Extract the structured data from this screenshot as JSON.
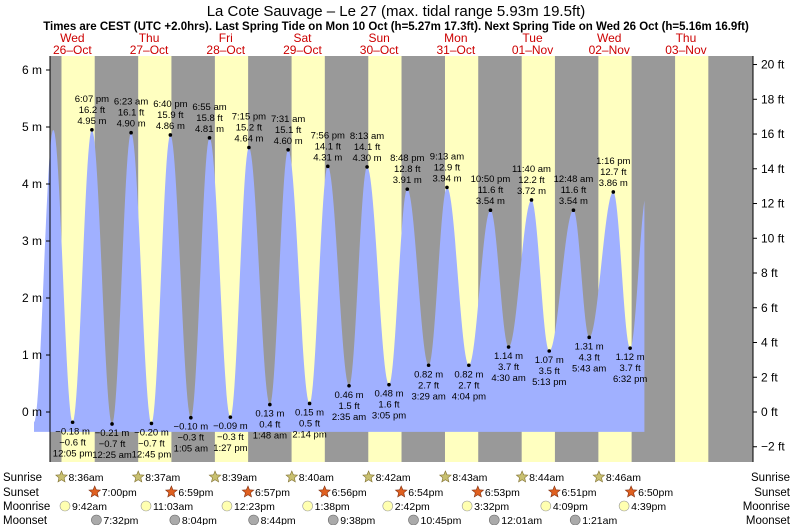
{
  "chart_data": {
    "type": "area",
    "title": "La Cote Sauvage – Le 27 (max. tidal range 5.93m 19.5ft)",
    "subtitle": "Times are CEST (UTC +2.0hrs). Last Spring Tide on Mon 10 Oct (h=5.27m 17.3ft). Next Spring Tide on Wed 26 Oct (h=5.16m 16.9ft)",
    "y_left_ticks": [
      "6 m",
      "5 m",
      "4 m",
      "3 m",
      "2 m",
      "1 m",
      "0 m"
    ],
    "y_right_ticks": [
      "20 ft",
      "18 ft",
      "16 ft",
      "14 ft",
      "12 ft",
      "10 ft",
      "8 ft",
      "6 ft",
      "4 ft",
      "2 ft",
      "0 ft",
      "−2 ft"
    ],
    "ylim_m": [
      -0.7,
      6.25
    ],
    "days": [
      {
        "dow": "Wed",
        "date": "26–Oct"
      },
      {
        "dow": "Thu",
        "date": "27–Oct"
      },
      {
        "dow": "Fri",
        "date": "28–Oct"
      },
      {
        "dow": "Sat",
        "date": "29–Oct"
      },
      {
        "dow": "Sun",
        "date": "30–Oct"
      },
      {
        "dow": "Mon",
        "date": "31–Oct"
      },
      {
        "dow": "Tue",
        "date": "01–Nov"
      },
      {
        "dow": "Wed",
        "date": "02–Nov"
      },
      {
        "dow": "Thu",
        "date": "03–Nov"
      }
    ],
    "tides": [
      {
        "type": "high",
        "time": "6:07 pm",
        "ft": "16.2 ft",
        "m": "4.95 m",
        "h": 4.95,
        "t": 18.12
      },
      {
        "type": "low",
        "time": "12:05 pm",
        "ft": "−0.6 ft",
        "m": "−0.18 m",
        "h": -0.18,
        "t": 12.08
      },
      {
        "type": "high",
        "time": "6:23 am",
        "ft": "16.1 ft",
        "m": "4.90 m",
        "h": 4.9,
        "t": 30.38
      },
      {
        "type": "low",
        "time": "12:25 am",
        "ft": "−0.7 ft",
        "m": "−0.21 m",
        "h": -0.21,
        "t": 24.42
      },
      {
        "type": "low",
        "time": "12:45 pm",
        "ft": "−0.7 ft",
        "m": "−0.20 m",
        "h": -0.2,
        "t": 36.75
      },
      {
        "type": "high",
        "time": "6:40 pm",
        "ft": "15.9 ft",
        "m": "4.86 m",
        "h": 4.86,
        "t": 42.67
      },
      {
        "type": "low",
        "time": "1:05 am",
        "ft": "−0.3 ft",
        "m": "−0.10 m",
        "h": -0.1,
        "t": 49.08
      },
      {
        "type": "high",
        "time": "6:55 am",
        "ft": "15.8 ft",
        "m": "4.81 m",
        "h": 4.81,
        "t": 54.92
      },
      {
        "type": "low",
        "time": "1:27 pm",
        "ft": "−0.3 ft",
        "m": "−0.09 m",
        "h": -0.09,
        "t": 61.45
      },
      {
        "type": "high",
        "time": "7:15 pm",
        "ft": "15.2 ft",
        "m": "4.64 m",
        "h": 4.64,
        "t": 67.25
      },
      {
        "type": "low",
        "time": "1:48 am",
        "ft": "0.4 ft",
        "m": "0.13 m",
        "h": 0.13,
        "t": 73.8
      },
      {
        "type": "high",
        "time": "7:31 am",
        "ft": "15.1 ft",
        "m": "4.60 m",
        "h": 4.6,
        "t": 79.52
      },
      {
        "type": "low",
        "time": "2:14 pm",
        "ft": "0.5 ft",
        "m": "0.15 m",
        "h": 0.15,
        "t": 86.23
      },
      {
        "type": "high",
        "time": "7:56 pm",
        "ft": "14.1 ft",
        "m": "4.31 m",
        "h": 4.31,
        "t": 91.93
      },
      {
        "type": "low",
        "time": "2:35 am",
        "ft": "1.5 ft",
        "m": "0.46 m",
        "h": 0.46,
        "t": 98.58
      },
      {
        "type": "high",
        "time": "8:13 am",
        "ft": "14.1 ft",
        "m": "4.30 m",
        "h": 4.3,
        "t": 104.22
      },
      {
        "type": "low",
        "time": "3:05 pm",
        "ft": "1.6 ft",
        "m": "0.48 m",
        "h": 0.48,
        "t": 111.08
      },
      {
        "type": "high",
        "time": "8:48 pm",
        "ft": "12.8 ft",
        "m": "3.91 m",
        "h": 3.91,
        "t": 116.8
      },
      {
        "type": "low",
        "time": "3:29 am",
        "ft": "2.7 ft",
        "m": "0.82 m",
        "h": 0.82,
        "t": 123.48
      },
      {
        "type": "high",
        "time": "9:13 am",
        "ft": "12.9 ft",
        "m": "3.94 m",
        "h": 3.94,
        "t": 129.22
      },
      {
        "type": "low",
        "time": "4:04 pm",
        "ft": "2.7 ft",
        "m": "0.82 m",
        "h": 0.82,
        "t": 136.07
      },
      {
        "type": "high",
        "time": "10:50 pm",
        "ft": "11.6 ft",
        "m": "3.54 m",
        "h": 3.54,
        "t": 142.83
      },
      {
        "type": "low",
        "time": "4:30 am",
        "ft": "3.7 ft",
        "m": "1.14 m",
        "h": 1.14,
        "t": 148.5
      },
      {
        "type": "high",
        "time": "11:40 am",
        "ft": "12.2 ft",
        "m": "3.72 m",
        "h": 3.72,
        "t": 155.67
      },
      {
        "type": "low",
        "time": "5:13 pm",
        "ft": "3.5 ft",
        "m": "1.07 m",
        "h": 1.07,
        "t": 161.22
      },
      {
        "type": "high",
        "time": "12:48 am",
        "ft": "11.6 ft",
        "m": "3.54 m",
        "h": 3.54,
        "t": 168.8
      },
      {
        "type": "low",
        "time": "5:43 am",
        "ft": "4.3 ft",
        "m": "1.31 m",
        "h": 1.31,
        "t": 173.72
      },
      {
        "type": "high",
        "time": "1:16 pm",
        "ft": "12.7 ft",
        "m": "3.86 m",
        "h": 3.86,
        "t": 181.27
      },
      {
        "type": "low",
        "time": "6:32 pm",
        "ft": "3.7 ft",
        "m": "1.12 m",
        "h": 1.12,
        "t": 186.53
      }
    ],
    "row_labels": {
      "sunrise": "Sunrise",
      "sunset": "Sunset",
      "moonrise": "Moonrise",
      "moonset": "Moonset"
    },
    "sunrise": [
      "8:36am",
      "8:37am",
      "8:39am",
      "8:40am",
      "8:42am",
      "8:43am",
      "8:44am",
      "8:46am"
    ],
    "sunset": [
      "7:00pm",
      "6:59pm",
      "6:57pm",
      "6:56pm",
      "6:54pm",
      "6:53pm",
      "6:51pm",
      "6:50pm"
    ],
    "moonrise": [
      "9:42am",
      "11:03am",
      "12:23pm",
      "1:38pm",
      "2:42pm",
      "3:32pm",
      "4:09pm",
      "4:39pm"
    ],
    "moonset": [
      "7:32pm",
      "8:04pm",
      "8:44pm",
      "9:38pm",
      "10:45pm",
      "12:01am",
      "1:21am"
    ],
    "colors": {
      "night": "#999999",
      "day": "#ffffc0",
      "water": "#a0b0ff",
      "day_label": "#cc0000",
      "sun": "#e0a030",
      "sunset": "#e06020",
      "moonrise": "#ffffb0",
      "moonset": "#aaaaaa"
    }
  }
}
